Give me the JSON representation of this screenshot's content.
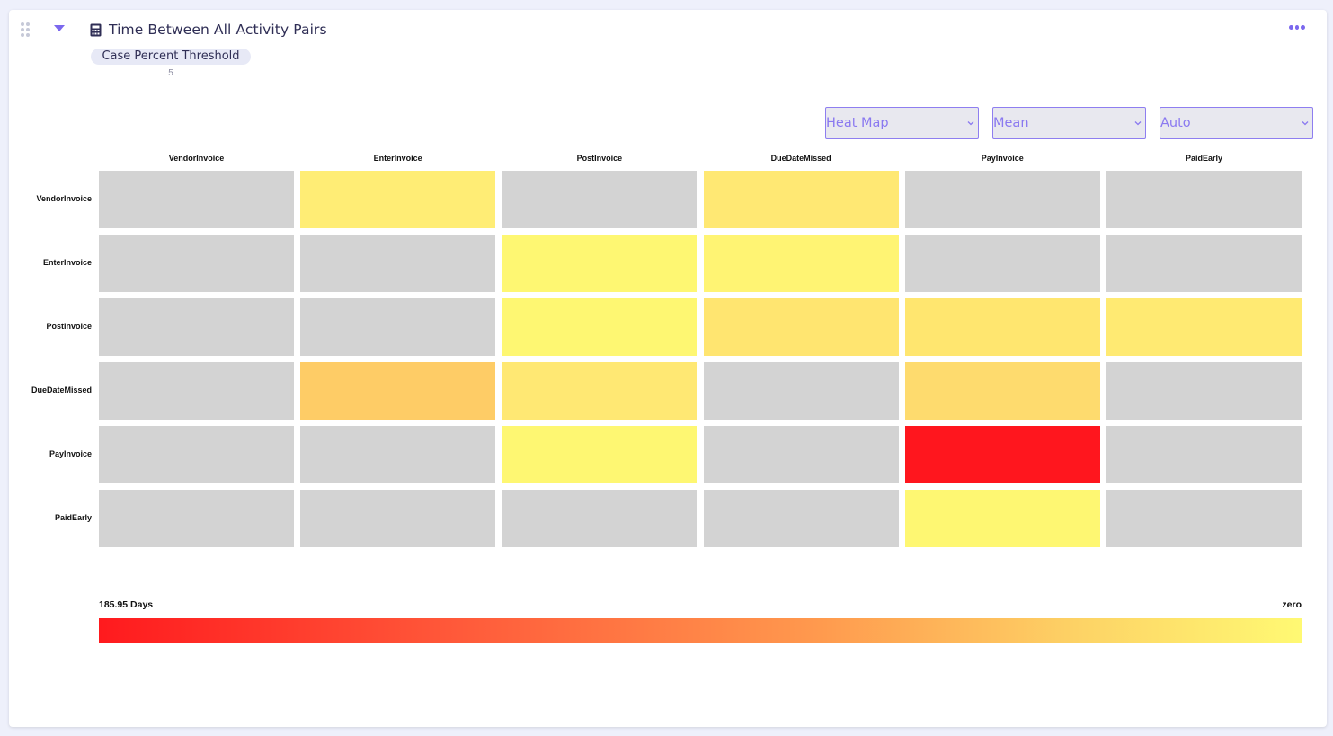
{
  "header": {
    "title": "Time Between All Activity Pairs",
    "title_icon": "calculator-icon",
    "parameter": {
      "label": "Case Percent Threshold",
      "value": "5"
    }
  },
  "controls": {
    "chart_type": "Heat Map",
    "aggregation": "Mean",
    "scale": "Auto",
    "accent_color": "#7b68ee"
  },
  "chart_data": {
    "type": "heatmap",
    "x_categories": [
      "VendorInvoice",
      "EnterInvoice",
      "PostInvoice",
      "DueDateMissed",
      "PayInvoice",
      "PaidEarly"
    ],
    "y_categories": [
      "VendorInvoice",
      "EnterInvoice",
      "PostInvoice",
      "DueDateMissed",
      "PayInvoice",
      "PaidEarly"
    ],
    "cell_colors": [
      [
        "#d3d3d3",
        "#ffed75",
        "#d3d3d3",
        "#ffe873",
        "#d3d3d3",
        "#d3d3d3"
      ],
      [
        "#d3d3d3",
        "#d3d3d3",
        "#fef772",
        "#fff473",
        "#d3d3d3",
        "#d3d3d3"
      ],
      [
        "#d3d3d3",
        "#d3d3d3",
        "#fef772",
        "#ffe570",
        "#ffe66f",
        "#ffea72"
      ],
      [
        "#d3d3d3",
        "#fecc66",
        "#ffe873",
        "#d3d3d3",
        "#fedb6e",
        "#d3d3d3"
      ],
      [
        "#d3d3d3",
        "#d3d3d3",
        "#fef772",
        "#d3d3d3",
        "#ff161e",
        "#d3d3d3"
      ],
      [
        "#d3d3d3",
        "#d3d3d3",
        "#d3d3d3",
        "#d3d3d3",
        "#fef772",
        "#d3d3d3"
      ]
    ],
    "empty_color": "#d3d3d3",
    "legend": {
      "max_label": "185.95 Days",
      "min_label": "zero",
      "max_color": "#ff1a1e",
      "min_color": "#fff973"
    }
  }
}
